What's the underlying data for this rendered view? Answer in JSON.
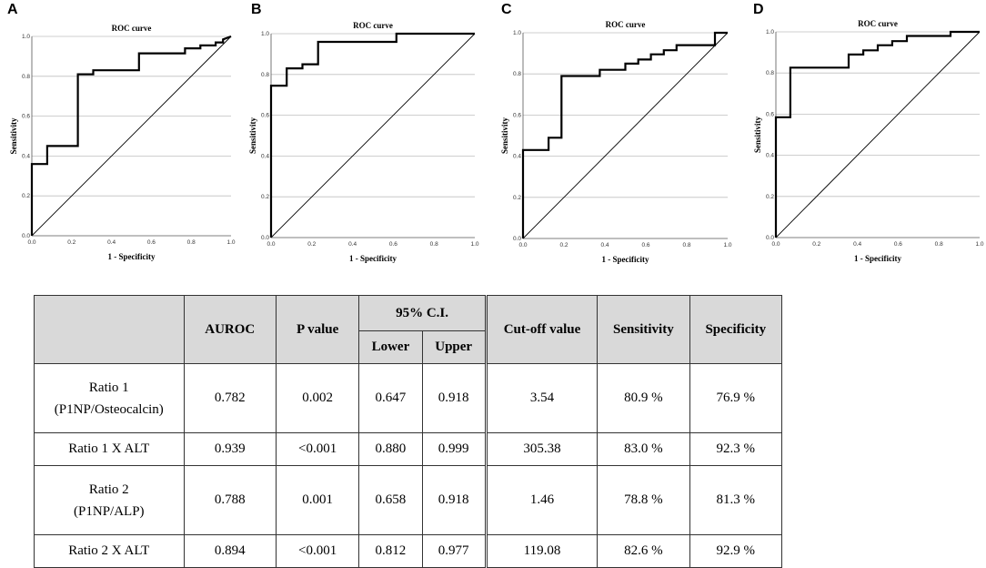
{
  "chart_data": [
    {
      "type": "line",
      "panel": "A",
      "title": "ROC curve",
      "xlabel": "1 - Specificity",
      "ylabel": "Sensitivity",
      "xlim": [
        0,
        1
      ],
      "ylim": [
        0,
        1
      ],
      "ticks": [
        "0.0",
        "0.2",
        "0.4",
        "0.6",
        "0.8",
        "1.0"
      ],
      "series": [
        {
          "name": "ROC",
          "x": [
            0,
            0,
            0.077,
            0.077,
            0.231,
            0.231,
            0.308,
            0.308,
            0.538,
            0.538,
            0.769,
            0.769,
            0.846,
            0.846,
            0.923,
            0.923,
            0.96,
            0.96,
            1.0
          ],
          "y": [
            0,
            0.36,
            0.36,
            0.45,
            0.45,
            0.81,
            0.81,
            0.83,
            0.83,
            0.915,
            0.915,
            0.94,
            0.94,
            0.955,
            0.955,
            0.97,
            0.97,
            0.985,
            1.0
          ]
        },
        {
          "name": "Reference",
          "x": [
            0,
            1
          ],
          "y": [
            0,
            1
          ]
        }
      ]
    },
    {
      "type": "line",
      "panel": "B",
      "title": "ROC curve",
      "xlabel": "1 - Specificity",
      "ylabel": "Sensitivity",
      "xlim": [
        0,
        1
      ],
      "ylim": [
        0,
        1
      ],
      "ticks": [
        "0.0",
        "0.2",
        "0.4",
        "0.6",
        "0.8",
        "1.0"
      ],
      "series": [
        {
          "name": "ROC",
          "x": [
            0,
            0,
            0.077,
            0.077,
            0.154,
            0.154,
            0.231,
            0.231,
            0.615,
            0.615,
            1.0
          ],
          "y": [
            0,
            0.745,
            0.745,
            0.83,
            0.83,
            0.85,
            0.85,
            0.96,
            0.96,
            1.0,
            1.0
          ]
        },
        {
          "name": "Reference",
          "x": [
            0,
            1
          ],
          "y": [
            0,
            1
          ]
        }
      ]
    },
    {
      "type": "line",
      "panel": "C",
      "title": "ROC curve",
      "xlabel": "1 - Specificity",
      "ylabel": "Sensitivity",
      "xlim": [
        0,
        1
      ],
      "ylim": [
        0,
        1
      ],
      "ticks": [
        "0.0",
        "0.2",
        "0.4",
        "0.6",
        "0.8",
        "1.0"
      ],
      "series": [
        {
          "name": "ROC",
          "x": [
            0,
            0,
            0.125,
            0.125,
            0.188,
            0.188,
            0.375,
            0.375,
            0.5,
            0.5,
            0.563,
            0.563,
            0.625,
            0.625,
            0.688,
            0.688,
            0.75,
            0.75,
            0.938,
            0.938,
            1.0
          ],
          "y": [
            0,
            0.43,
            0.43,
            0.49,
            0.49,
            0.79,
            0.79,
            0.82,
            0.82,
            0.85,
            0.85,
            0.87,
            0.87,
            0.895,
            0.895,
            0.915,
            0.915,
            0.94,
            0.94,
            1.0,
            1.0
          ]
        },
        {
          "name": "Reference",
          "x": [
            0,
            1
          ],
          "y": [
            0,
            1
          ]
        }
      ]
    },
    {
      "type": "line",
      "panel": "D",
      "title": "ROC curve",
      "xlabel": "1 - Specificity",
      "ylabel": "Sensitivity",
      "xlim": [
        0,
        1
      ],
      "ylim": [
        0,
        1
      ],
      "ticks": [
        "0.0",
        "0.2",
        "0.4",
        "0.6",
        "0.8",
        "1.0"
      ],
      "series": [
        {
          "name": "ROC",
          "x": [
            0,
            0,
            0.071,
            0.071,
            0.357,
            0.357,
            0.429,
            0.429,
            0.5,
            0.5,
            0.571,
            0.571,
            0.643,
            0.643,
            0.857,
            0.857,
            1.0
          ],
          "y": [
            0,
            0.585,
            0.585,
            0.826,
            0.826,
            0.89,
            0.89,
            0.91,
            0.91,
            0.935,
            0.935,
            0.955,
            0.955,
            0.98,
            0.98,
            1.0,
            1.0
          ]
        },
        {
          "name": "Reference",
          "x": [
            0,
            1
          ],
          "y": [
            0,
            1
          ]
        }
      ]
    }
  ],
  "table": {
    "headers": {
      "auroc": "AUROC",
      "p_value": "P value",
      "ci": "95% C.I.",
      "lower": "Lower",
      "upper": "Upper",
      "cutoff": "Cut-off value",
      "sensitivity": "Sensitivity",
      "specificity": "Specificity"
    },
    "rows": [
      {
        "name_line1": "Ratio 1",
        "name_line2": "(P1NP/Osteocalcin)",
        "auroc": "0.782",
        "p_value": "0.002",
        "lower": "0.647",
        "upper": "0.918",
        "cutoff": "3.54",
        "sensitivity": "80.9 %",
        "specificity": "76.9 %"
      },
      {
        "name_line1": "Ratio 1 X ALT",
        "name_line2": "",
        "auroc": "0.939",
        "p_value": "<0.001",
        "lower": "0.880",
        "upper": "0.999",
        "cutoff": "305.38",
        "sensitivity": "83.0 %",
        "specificity": "92.3 %"
      },
      {
        "name_line1": "Ratio 2",
        "name_line2": "(P1NP/ALP)",
        "auroc": "0.788",
        "p_value": "0.001",
        "lower": "0.658",
        "upper": "0.918",
        "cutoff": "1.46",
        "sensitivity": "78.8 %",
        "specificity": "81.3 %"
      },
      {
        "name_line1": "Ratio 2 X ALT",
        "name_line2": "",
        "auroc": "0.894",
        "p_value": "<0.001",
        "lower": "0.812",
        "upper": "0.977",
        "cutoff": "119.08",
        "sensitivity": "82.6 %",
        "specificity": "92.9 %"
      }
    ]
  }
}
